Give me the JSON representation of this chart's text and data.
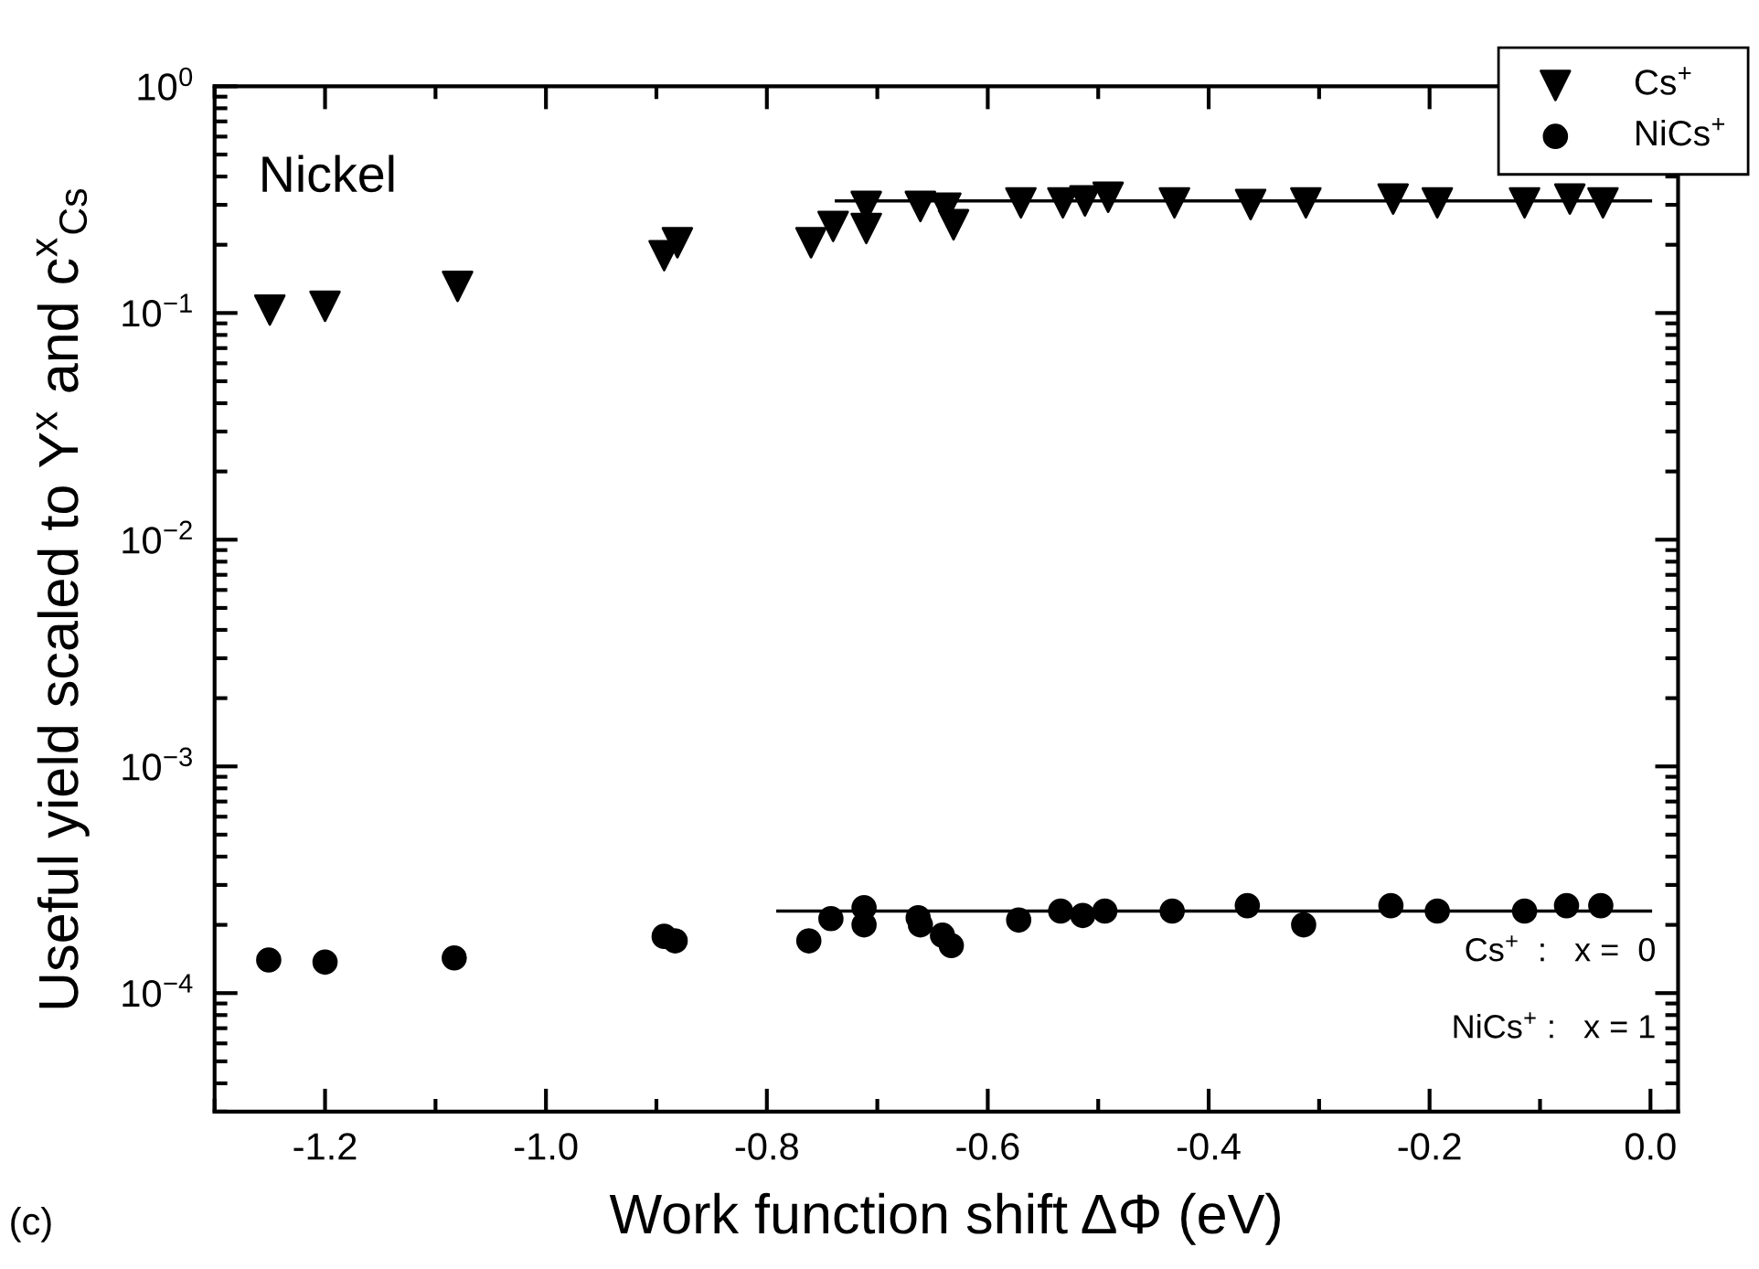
{
  "chart_data": {
    "type": "scatter",
    "xlabel": "Work function shift ΔΦ (eV)",
    "ylabel": "Useful yield scaled to Y$^{x}$ and c$^{x}$$_{Cs}$",
    "log": "y",
    "grid": false,
    "legend": "top right",
    "xlim": [
      -1.3,
      0.025
    ],
    "xticks": [
      -1.2,
      {
        "value": -1,
        "label": "-1.0"
      },
      -0.8,
      -0.6,
      -0.4,
      -0.2,
      {
        "value": 0,
        "label": "0.0"
      }
    ],
    "ylim": [
      3e-05,
      1
    ],
    "yticks": [
      {
        "value": 0.0001,
        "label": "10$^{−4}$"
      },
      {
        "value": 0.001,
        "label": "10$^{−3}$"
      },
      {
        "value": 0.01,
        "label": "10$^{−2}$"
      },
      {
        "value": 0.1,
        "label": "10$^{−1}$"
      },
      {
        "value": 1,
        "label": "10$^{0}$"
      }
    ],
    "series": [
      {
        "name": "Cs$^{+}$",
        "marker": "triangle",
        "color": "#000000",
        "x": [
          -1.25,
          -1.2,
          -1.08,
          -0.893,
          -0.881,
          -0.76,
          -0.74,
          -0.71,
          -0.71,
          -0.661,
          -0.638,
          -0.631,
          -0.57,
          -0.532,
          -0.512,
          -0.491,
          -0.431,
          -0.362,
          -0.312,
          -0.233,
          -0.193,
          -0.114,
          -0.073,
          -0.043
        ],
        "values": [
          0.103,
          0.107,
          0.131,
          0.179,
          0.204,
          0.204,
          0.241,
          0.236,
          0.295,
          0.295,
          0.29,
          0.245,
          0.306,
          0.306,
          0.312,
          0.324,
          0.306,
          0.301,
          0.306,
          0.318,
          0.306,
          0.306,
          0.318,
          0.306
        ]
      },
      {
        "name": "NiCs$^{+}$",
        "marker": "circle",
        "color": "#000000",
        "x": [
          -1.251,
          -1.2,
          -1.083,
          -0.893,
          -0.883,
          -0.762,
          -0.742,
          -0.712,
          -0.712,
          -0.663,
          -0.661,
          -0.641,
          -0.633,
          -0.572,
          -0.534,
          -0.514,
          -0.494,
          -0.433,
          -0.365,
          -0.314,
          -0.235,
          -0.193,
          -0.114,
          -0.076,
          -0.045
        ],
        "values": [
          0.00014,
          0.000137,
          0.000143,
          0.000178,
          0.00017,
          0.00017,
          0.000213,
          0.000238,
          0.0002,
          0.000215,
          0.0002,
          0.00018,
          0.000162,
          0.00021,
          0.00023,
          0.00022,
          0.00023,
          0.00023,
          0.000243,
          0.0002,
          0.000243,
          0.00023,
          0.00023,
          0.000243,
          0.000243
        ]
      },
      {
        "type": "line",
        "color": "#000000",
        "x": [
          -0.737,
          0.0
        ],
        "values": [
          0.312,
          0.312
        ]
      },
      {
        "type": "line",
        "color": "#000000",
        "x": [
          -0.79,
          0.0
        ],
        "values": [
          0.00023,
          0.00023
        ]
      }
    ],
    "annotations": [
      "Nickel",
      "(c)",
      "Cs$^{+}$  :   x =  0",
      "NiCs$^{+}$ :   x = 1"
    ]
  }
}
